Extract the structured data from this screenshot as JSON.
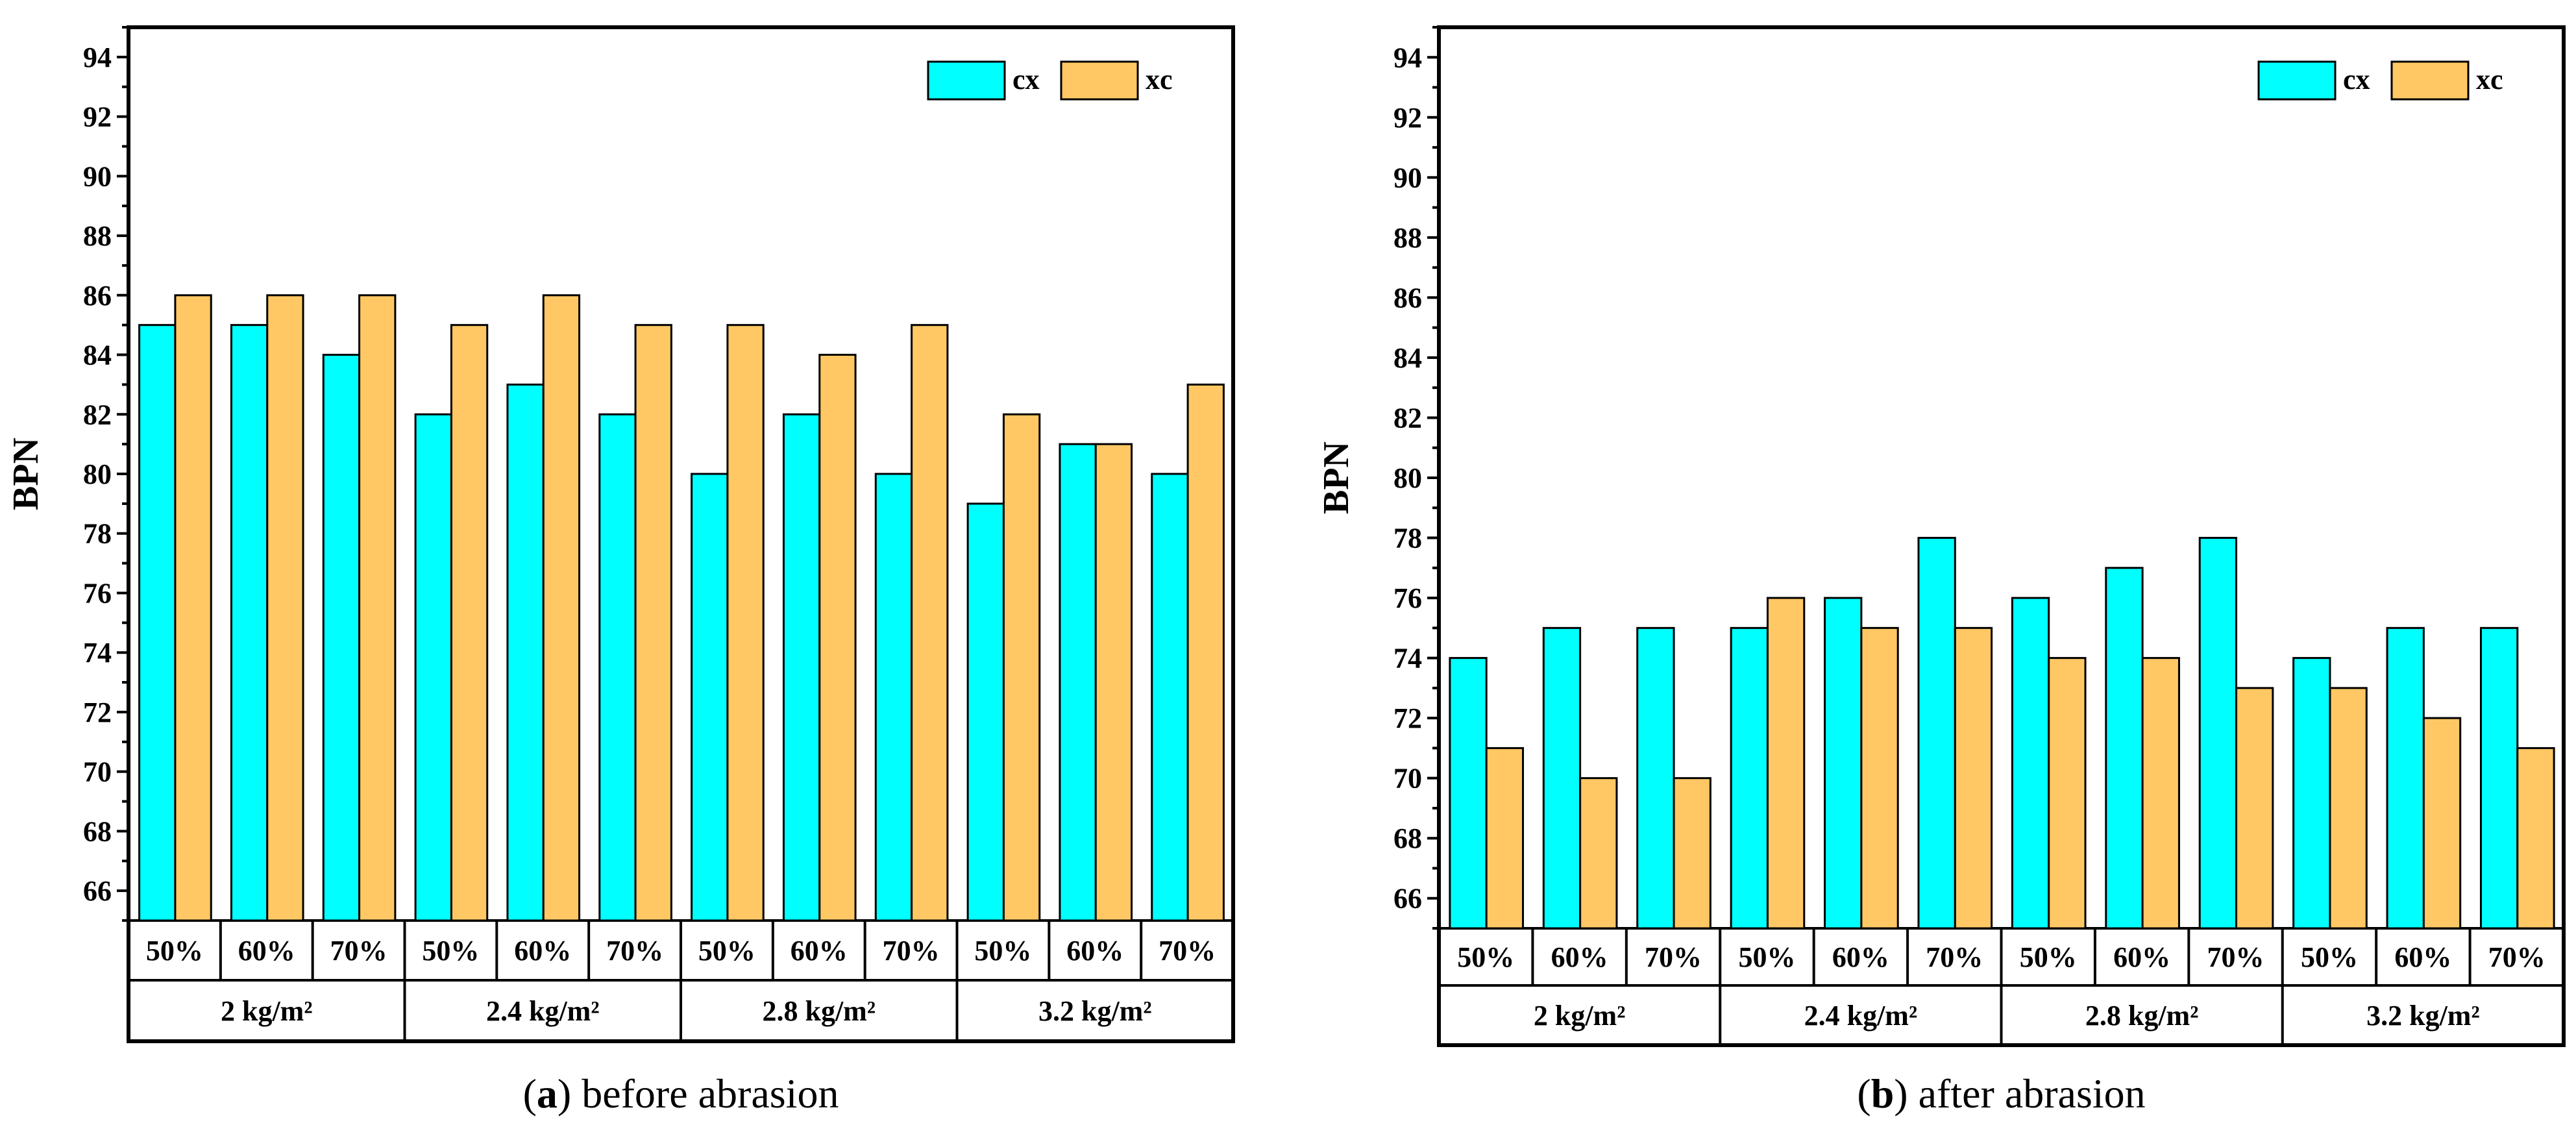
{
  "colors": {
    "cx": "#00FFFF",
    "xc": "#FFC864"
  },
  "chart_data": [
    {
      "type": "bar",
      "panel_letter": "a",
      "caption": "before abrasion",
      "ylabel": "BPN",
      "ylim": [
        65,
        95
      ],
      "yticks": [
        66,
        68,
        70,
        72,
        74,
        76,
        78,
        80,
        82,
        84,
        86,
        88,
        90,
        92,
        94
      ],
      "groups": [
        "2 kg/m²",
        "2.4 kg/m²",
        "2.8 kg/m²",
        "3.2 kg/m²"
      ],
      "subcategories": [
        "50%",
        "60%",
        "70%"
      ],
      "legend": [
        "cx",
        "xc"
      ],
      "series": [
        {
          "name": "cx",
          "values": [
            85,
            85,
            84,
            82,
            83,
            82,
            80,
            82,
            80,
            79,
            81,
            80
          ]
        },
        {
          "name": "xc",
          "values": [
            86,
            86,
            86,
            85,
            86,
            85,
            85,
            84,
            85,
            82,
            81,
            83
          ]
        }
      ]
    },
    {
      "type": "bar",
      "panel_letter": "b",
      "caption": "after abrasion",
      "ylabel": "BPN",
      "ylim": [
        65,
        95
      ],
      "yticks": [
        66,
        68,
        70,
        72,
        74,
        76,
        78,
        80,
        82,
        84,
        86,
        88,
        90,
        92,
        94
      ],
      "groups": [
        "2 kg/m²",
        "2.4 kg/m²",
        "2.8 kg/m²",
        "3.2 kg/m²"
      ],
      "subcategories": [
        "50%",
        "60%",
        "70%"
      ],
      "legend": [
        "cx",
        "xc"
      ],
      "series": [
        {
          "name": "cx",
          "values": [
            74,
            75,
            75,
            75,
            76,
            78,
            76,
            77,
            78,
            74,
            75,
            75
          ]
        },
        {
          "name": "xc",
          "values": [
            71,
            70,
            70,
            76,
            75,
            75,
            74,
            74,
            73,
            73,
            72,
            71
          ]
        }
      ]
    }
  ]
}
